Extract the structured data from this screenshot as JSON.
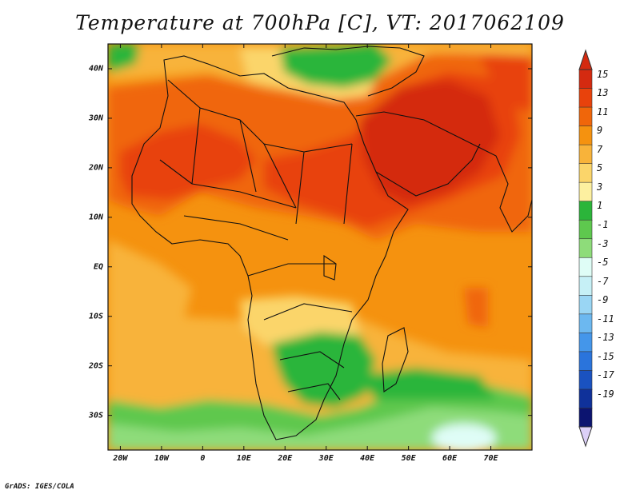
{
  "title": "Temperature at 700hPa [C], VT: 2017062109",
  "credit": "GrADS: IGES/COLA",
  "map": {
    "region": "Africa and Middle East",
    "lon_range": [
      -23,
      80
    ],
    "lat_range": [
      -37,
      45
    ],
    "lat_ticks": [
      {
        "lat": 40,
        "label": "40N"
      },
      {
        "lat": 30,
        "label": "30N"
      },
      {
        "lat": 20,
        "label": "20N"
      },
      {
        "lat": 10,
        "label": "10N"
      },
      {
        "lat": 0,
        "label": "EQ"
      },
      {
        "lat": -10,
        "label": "10S"
      },
      {
        "lat": -20,
        "label": "20S"
      },
      {
        "lat": -30,
        "label": "30S"
      }
    ],
    "lon_ticks": [
      {
        "lon": -20,
        "label": "20W"
      },
      {
        "lon": -10,
        "label": "10W"
      },
      {
        "lon": 0,
        "label": "0"
      },
      {
        "lon": 10,
        "label": "10E"
      },
      {
        "lon": 20,
        "label": "20E"
      },
      {
        "lon": 30,
        "label": "30E"
      },
      {
        "lon": 40,
        "label": "40E"
      },
      {
        "lon": 50,
        "label": "50E"
      },
      {
        "lon": 60,
        "label": "60E"
      },
      {
        "lon": 70,
        "label": "70E"
      }
    ]
  },
  "colorbar": {
    "levels": [
      "15",
      "13",
      "11",
      "9",
      "7",
      "5",
      "3",
      "1",
      "-1",
      "-3",
      "-5",
      "-7",
      "-9",
      "-11",
      "-13",
      "-15",
      "-17",
      "-19"
    ],
    "colors": [
      "#d42a10",
      "#e8420c",
      "#f0660a",
      "#f5920f",
      "#f8b33a",
      "#fbd56a",
      "#fdf0a0",
      "#2bb53a",
      "#5ec84e",
      "#8edc7a",
      "#dffdf6",
      "#c6f0f6",
      "#9ad6f4",
      "#6cb8f0",
      "#4496ea",
      "#2a74dc",
      "#1a52c0",
      "#0f319a",
      "#0c1470"
    ],
    "top_color": "#d42a10",
    "bottom_color": "#dcd0f8"
  }
}
